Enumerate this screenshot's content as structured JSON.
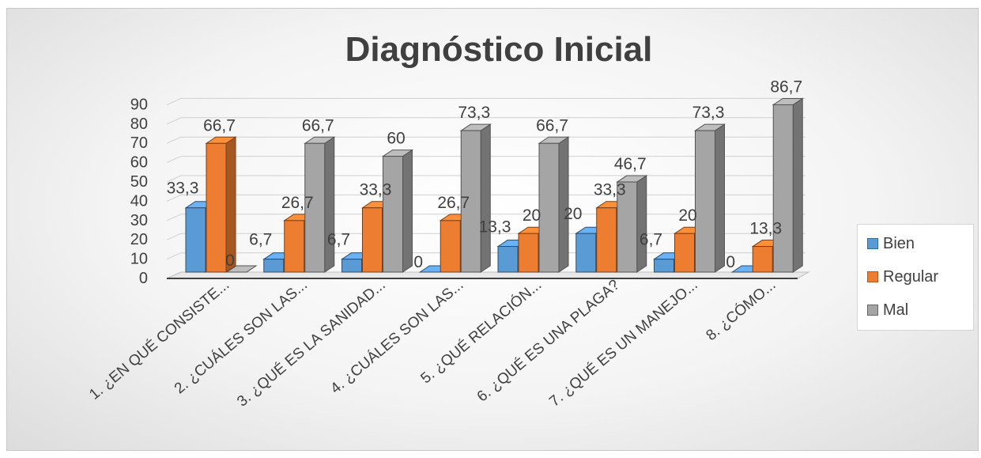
{
  "chart_data": {
    "type": "bar",
    "title": "Diagnóstico Inicial",
    "categories": [
      "1. ¿EN QUÉ CONSISTE...",
      "2. ¿CUÁLES SON LAS...",
      "3. ¿QUÉ ES LA SANIDAD...",
      "4. ¿CUÁLES SON LAS...",
      "5. ¿QUÉ RELACIÓN...",
      "6. ¿QUÉ ES UNA PLAGA?",
      "7. ¿QUÉ ES UN MANEJO...",
      "8. ¿CÓMO..."
    ],
    "series": [
      {
        "name": "Bien",
        "values": [
          33.3,
          6.7,
          6.7,
          0,
          13.3,
          20,
          6.7,
          0
        ],
        "labels": [
          "33,3",
          "6,7",
          "6,7",
          "0",
          "13,3",
          "20",
          "6,7",
          "0"
        ],
        "color": "#5b9bd5"
      },
      {
        "name": "Regular",
        "values": [
          66.7,
          26.7,
          33.3,
          26.7,
          20,
          33.3,
          20,
          13.3
        ],
        "labels": [
          "66,7",
          "26,7",
          "33,3",
          "26,7",
          "20",
          "33,3",
          "20",
          "13,3"
        ],
        "color": "#ed7d31"
      },
      {
        "name": "Mal",
        "values": [
          0,
          66.7,
          60,
          73.3,
          66.7,
          46.7,
          73.3,
          86.7
        ],
        "labels": [
          "0",
          "66,7",
          "60",
          "73,3",
          "66,7",
          "46,7",
          "73,3",
          "86,7"
        ],
        "color": "#a5a5a5"
      }
    ],
    "ylim": [
      0,
      90
    ],
    "yticks": [
      0,
      10,
      20,
      30,
      40,
      50,
      60,
      70,
      80,
      90
    ],
    "grid": true,
    "legend": "right"
  }
}
